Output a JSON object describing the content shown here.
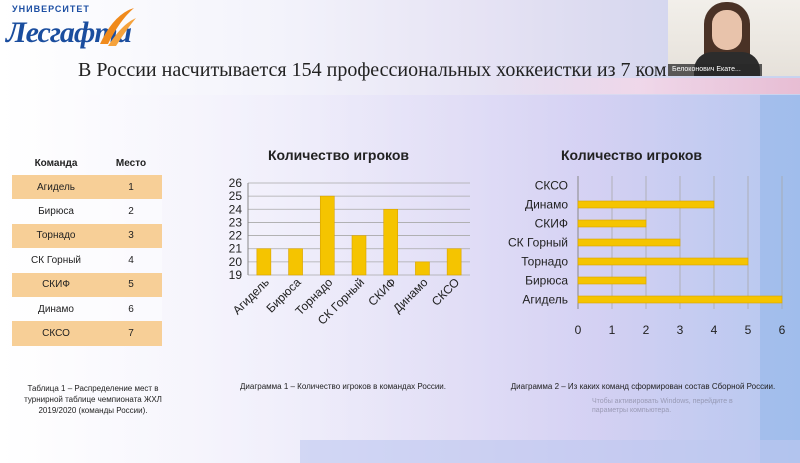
{
  "logo": {
    "top": "УНИВЕРСИТЕТ",
    "main": "Лесгафта"
  },
  "slide_title": "В России насчитывается 154 профессиональных хоккеистки из 7 ком",
  "participant": {
    "name": "Белоконович Екате..."
  },
  "table": {
    "headers": [
      "Команда",
      "Место"
    ],
    "rows": [
      [
        "Агидель",
        "1"
      ],
      [
        "Бирюса",
        "2"
      ],
      [
        "Торнадо",
        "3"
      ],
      [
        "СК Горный",
        "4"
      ],
      [
        "СКИФ",
        "5"
      ],
      [
        "Динамо",
        "6"
      ],
      [
        "СКСО",
        "7"
      ]
    ],
    "caption_lines": [
      "Таблица 1 – Распределение мест в",
      "турнирной таблице чемпионата ЖХЛ",
      "2019/2020  (команды России)."
    ]
  },
  "captions": {
    "chart1": "Диаграмма 1 – Количество игроков в командах России.",
    "chart2": "Диаграмма 2 – Из каких команд сформирован состав Сборной России."
  },
  "watermark": [
    "Чтобы активировать Windows, перейдите в",
    "параметры компьютера."
  ],
  "colors": {
    "bar": "#f5c400",
    "bar_edge": "#d9a300",
    "table_row": "#f7cf97",
    "logo": "#1a4d9e",
    "logo_accent": "#f08a1c"
  },
  "chart_data": [
    {
      "type": "bar",
      "title": "Количество игроков",
      "categories": [
        "Агидель",
        "Бирюса",
        "Торнадо",
        "СК Горный",
        "СКИФ",
        "Динамо",
        "СКСО"
      ],
      "values": [
        21,
        21,
        25,
        22,
        24,
        20,
        21
      ],
      "ylim": [
        19,
        26
      ],
      "yticks": [
        19,
        20,
        21,
        22,
        23,
        24,
        25,
        26
      ],
      "grid": true
    },
    {
      "type": "bar",
      "orientation": "horizontal",
      "title": "Количество игроков",
      "categories": [
        "Агидель",
        "Бирюса",
        "Торнадо",
        "СК Горный",
        "СКИФ",
        "Динамо",
        "СКСО"
      ],
      "values": [
        6,
        2,
        5,
        3,
        2,
        4,
        0
      ],
      "xlim": [
        0,
        6
      ],
      "xticks": [
        0,
        1,
        2,
        3,
        4,
        5,
        6
      ],
      "grid": true
    }
  ]
}
